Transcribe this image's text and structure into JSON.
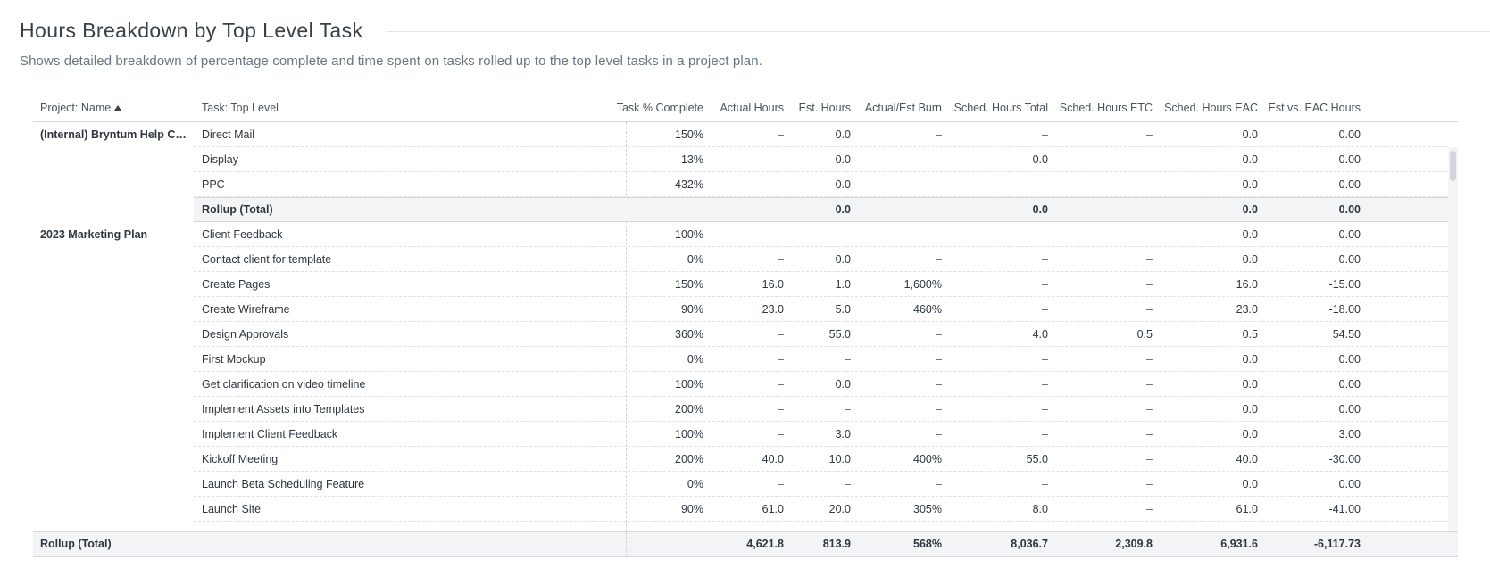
{
  "report": {
    "title": "Hours Breakdown by Top Level Task",
    "subtitle": "Shows detailed breakdown of percentage complete and time spent on tasks rolled up to the top level tasks in a project plan."
  },
  "columns": [
    {
      "key": "project",
      "label": "Project: Name",
      "align": "left",
      "sorted": "asc"
    },
    {
      "key": "task",
      "label": "Task: Top Level",
      "align": "left"
    },
    {
      "key": "pct",
      "label": "Task % Complete",
      "align": "right"
    },
    {
      "key": "actual",
      "label": "Actual Hours",
      "align": "right"
    },
    {
      "key": "est",
      "label": "Est. Hours",
      "align": "right"
    },
    {
      "key": "burn",
      "label": "Actual/Est Burn",
      "align": "right"
    },
    {
      "key": "sched_total",
      "label": "Sched. Hours Total",
      "align": "right"
    },
    {
      "key": "sched_etc",
      "label": "Sched. Hours ETC",
      "align": "right"
    },
    {
      "key": "sched_eac",
      "label": "Sched. Hours EAC",
      "align": "right"
    },
    {
      "key": "est_vs_eac",
      "label": "Est vs. EAC Hours",
      "align": "right"
    }
  ],
  "rows": [
    {
      "type": "normal",
      "project": "(Internal) Bryntum Help Cen...",
      "task": "Direct Mail",
      "pct": "150%",
      "actual": "–",
      "est": "0.0",
      "burn": "–",
      "sched_total": "–",
      "sched_etc": "–",
      "sched_eac": "0.0",
      "est_vs_eac": "0.00"
    },
    {
      "type": "normal",
      "project": "",
      "task": "Display",
      "pct": "13%",
      "actual": "–",
      "est": "0.0",
      "burn": "–",
      "sched_total": "0.0",
      "sched_etc": "–",
      "sched_eac": "0.0",
      "est_vs_eac": "0.00"
    },
    {
      "type": "normal",
      "project": "",
      "task": "PPC",
      "pct": "432%",
      "actual": "–",
      "est": "0.0",
      "burn": "–",
      "sched_total": "–",
      "sched_etc": "–",
      "sched_eac": "0.0",
      "est_vs_eac": "0.00"
    },
    {
      "type": "rollup",
      "project": "",
      "task": "Rollup (Total)",
      "pct": "",
      "actual": "",
      "est": "0.0",
      "burn": "",
      "sched_total": "0.0",
      "sched_etc": "",
      "sched_eac": "0.0",
      "est_vs_eac": "0.00"
    },
    {
      "type": "normal",
      "project": "2023 Marketing Plan",
      "task": "Client Feedback",
      "pct": "100%",
      "actual": "–",
      "est": "–",
      "burn": "–",
      "sched_total": "–",
      "sched_etc": "–",
      "sched_eac": "0.0",
      "est_vs_eac": "0.00"
    },
    {
      "type": "normal",
      "project": "",
      "task": "Contact client for template",
      "pct": "0%",
      "actual": "–",
      "est": "0.0",
      "burn": "–",
      "sched_total": "–",
      "sched_etc": "–",
      "sched_eac": "0.0",
      "est_vs_eac": "0.00"
    },
    {
      "type": "normal",
      "project": "",
      "task": "Create Pages",
      "pct": "150%",
      "actual": "16.0",
      "est": "1.0",
      "burn": "1,600%",
      "sched_total": "–",
      "sched_etc": "–",
      "sched_eac": "16.0",
      "est_vs_eac": "-15.00"
    },
    {
      "type": "normal",
      "project": "",
      "task": "Create Wireframe",
      "pct": "90%",
      "actual": "23.0",
      "est": "5.0",
      "burn": "460%",
      "sched_total": "–",
      "sched_etc": "–",
      "sched_eac": "23.0",
      "est_vs_eac": "-18.00"
    },
    {
      "type": "normal",
      "project": "",
      "task": "Design Approvals",
      "pct": "360%",
      "actual": "–",
      "est": "55.0",
      "burn": "–",
      "sched_total": "4.0",
      "sched_etc": "0.5",
      "sched_eac": "0.5",
      "est_vs_eac": "54.50"
    },
    {
      "type": "normal",
      "project": "",
      "task": "First Mockup",
      "pct": "0%",
      "actual": "–",
      "est": "–",
      "burn": "–",
      "sched_total": "–",
      "sched_etc": "–",
      "sched_eac": "0.0",
      "est_vs_eac": "0.00"
    },
    {
      "type": "normal",
      "project": "",
      "task": "Get clarification on video timeline",
      "pct": "100%",
      "actual": "–",
      "est": "0.0",
      "burn": "–",
      "sched_total": "–",
      "sched_etc": "–",
      "sched_eac": "0.0",
      "est_vs_eac": "0.00"
    },
    {
      "type": "normal",
      "project": "",
      "task": "Implement Assets into Templates",
      "pct": "200%",
      "actual": "–",
      "est": "–",
      "burn": "–",
      "sched_total": "–",
      "sched_etc": "–",
      "sched_eac": "0.0",
      "est_vs_eac": "0.00"
    },
    {
      "type": "normal",
      "project": "",
      "task": "Implement Client Feedback",
      "pct": "100%",
      "actual": "–",
      "est": "3.0",
      "burn": "–",
      "sched_total": "–",
      "sched_etc": "–",
      "sched_eac": "0.0",
      "est_vs_eac": "3.00"
    },
    {
      "type": "normal",
      "project": "",
      "task": "Kickoff Meeting",
      "pct": "200%",
      "actual": "40.0",
      "est": "10.0",
      "burn": "400%",
      "sched_total": "55.0",
      "sched_etc": "–",
      "sched_eac": "40.0",
      "est_vs_eac": "-30.00"
    },
    {
      "type": "normal",
      "project": "",
      "task": "Launch Beta Scheduling Feature",
      "pct": "0%",
      "actual": "–",
      "est": "–",
      "burn": "–",
      "sched_total": "–",
      "sched_etc": "–",
      "sched_eac": "0.0",
      "est_vs_eac": "0.00"
    },
    {
      "type": "normal",
      "project": "",
      "task": "Launch Site",
      "pct": "90%",
      "actual": "61.0",
      "est": "20.0",
      "burn": "305%",
      "sched_total": "8.0",
      "sched_etc": "–",
      "sched_eac": "61.0",
      "est_vs_eac": "-41.00"
    }
  ],
  "footer": {
    "label": "Rollup (Total)",
    "actual": "4,621.8",
    "est": "813.9",
    "burn": "568%",
    "sched_total": "8,036.7",
    "sched_etc": "2,309.8",
    "sched_eac": "6,931.6",
    "est_vs_eac": "-6,117.73"
  },
  "icons": {
    "sort": "sort-ascending-icon"
  }
}
